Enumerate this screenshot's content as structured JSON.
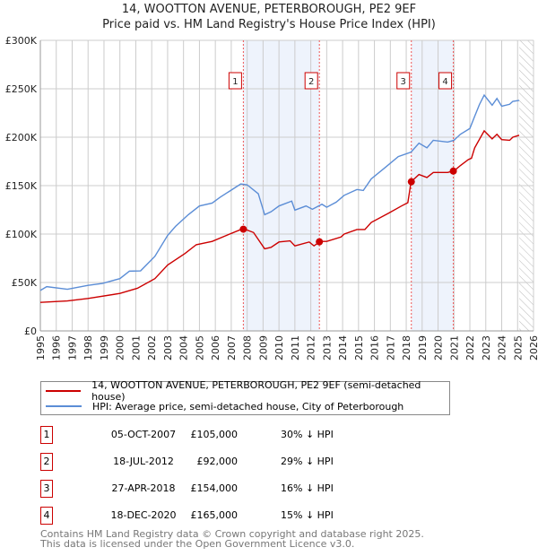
{
  "chart_data": {
    "type": "line",
    "title": "14, WOOTTON AVENUE, PETERBOROUGH, PE2 9EF",
    "subtitle": "Price paid vs. HM Land Registry's House Price Index (HPI)",
    "ylim": [
      0,
      300000
    ],
    "xlim": [
      1995,
      2026
    ],
    "yticks": [
      {
        "v": 0,
        "label": "£0"
      },
      {
        "v": 50000,
        "label": "£50K"
      },
      {
        "v": 100000,
        "label": "£100K"
      },
      {
        "v": 150000,
        "label": "£150K"
      },
      {
        "v": 200000,
        "label": "£200K"
      },
      {
        "v": 250000,
        "label": "£250K"
      },
      {
        "v": 300000,
        "label": "£300K"
      }
    ],
    "xticks": [
      "1995",
      "1996",
      "1997",
      "1998",
      "1999",
      "2000",
      "2001",
      "2002",
      "2003",
      "2004",
      "2005",
      "2006",
      "2007",
      "2008",
      "2009",
      "2010",
      "2011",
      "2012",
      "2013",
      "2014",
      "2015",
      "2016",
      "2017",
      "2018",
      "2019",
      "2020",
      "2021",
      "2022",
      "2023",
      "2024",
      "2025",
      "2026"
    ],
    "grid": true,
    "forecast_start": 2025.1,
    "series": [
      {
        "name": "14, WOOTTON AVENUE, PETERBOROUGH, PE2 9EF (semi-detached house)",
        "color": "#cc0000",
        "x": [
          1995.0,
          1996.7,
          1998.0,
          2000.0,
          2001.1,
          2002.2,
          2003.0,
          2004.1,
          2004.8,
          2005.8,
          2006.7,
          2007.6,
          2007.8,
          2008.4,
          2009.1,
          2009.5,
          2010.0,
          2010.7,
          2011.0,
          2011.9,
          2012.2,
          2012.6,
          2013.0,
          2013.9,
          2014.1,
          2014.9,
          2015.4,
          2015.8,
          2016.9,
          2017.7,
          2018.1,
          2018.2,
          2018.3,
          2018.8,
          2019.3,
          2019.7,
          2020.6,
          2021.0,
          2021.4,
          2021.9,
          2022.1,
          2022.3,
          2022.9,
          2023.4,
          2023.7,
          2024.0,
          2024.5,
          2024.7,
          2025.1
        ],
        "y": [
          29500,
          31000,
          33500,
          38700,
          44000,
          54000,
          68000,
          80000,
          89000,
          92400,
          98600,
          104700,
          105300,
          101600,
          84800,
          86300,
          91800,
          93000,
          87800,
          91800,
          87800,
          92400,
          92400,
          97000,
          100000,
          104700,
          104700,
          112000,
          121600,
          129000,
          132400,
          143000,
          153900,
          161500,
          158400,
          163600,
          163600,
          165200,
          170700,
          176900,
          178300,
          189000,
          206600,
          198300,
          203000,
          197500,
          196800,
          200000,
          202000
        ]
      },
      {
        "name": "HPI: Average price, semi-detached house, City of Peterborough",
        "color": "#5b8dd6",
        "x": [
          1995.0,
          1995.4,
          1996.7,
          1998.0,
          1998.9,
          2000.0,
          2000.6,
          2001.3,
          2002.2,
          2003.0,
          2003.5,
          2004.3,
          2005.0,
          2005.8,
          2006.3,
          2007.6,
          2008.0,
          2008.7,
          2009.1,
          2009.5,
          2010.0,
          2010.8,
          2011.0,
          2011.7,
          2012.1,
          2012.7,
          2013.0,
          2013.6,
          2014.1,
          2014.9,
          2015.3,
          2015.8,
          2016.7,
          2017.5,
          2018.3,
          2018.8,
          2019.3,
          2019.7,
          2020.6,
          2021.0,
          2021.4,
          2022.0,
          2022.3,
          2022.6,
          2022.9,
          2023.4,
          2023.7,
          2024.0,
          2024.5,
          2024.7,
          2025.1
        ],
        "y": [
          41800,
          45700,
          43000,
          47000,
          49000,
          54000,
          61700,
          62000,
          77000,
          98600,
          108000,
          120000,
          129000,
          132000,
          138000,
          151700,
          150800,
          141600,
          120000,
          123000,
          129000,
          134000,
          124700,
          129000,
          125600,
          130800,
          127700,
          133000,
          140000,
          146000,
          145000,
          157000,
          169000,
          180000,
          184600,
          193800,
          189000,
          196800,
          195000,
          196800,
          203000,
          209000,
          221500,
          233700,
          243500,
          233000,
          240000,
          232000,
          234000,
          237000,
          238000
        ]
      }
    ],
    "sales": [
      {
        "id": "1",
        "x": 2007.76,
        "value": 105000,
        "date": "05-OCT-2007",
        "price": "£105,000",
        "hpi": "30% ↓ HPI"
      },
      {
        "id": "2",
        "x": 2012.54,
        "value": 92000,
        "date": "18-JUL-2012",
        "price": "£92,000",
        "hpi": "29% ↓ HPI"
      },
      {
        "id": "3",
        "x": 2018.32,
        "value": 154000,
        "date": "27-APR-2018",
        "price": "£154,000",
        "hpi": "16% ↓ HPI"
      },
      {
        "id": "4",
        "x": 2020.96,
        "value": 165000,
        "date": "18-DEC-2020",
        "price": "£165,000",
        "hpi": "15% ↓ HPI"
      }
    ],
    "shaded": [
      [
        2007.76,
        2012.54
      ],
      [
        2018.32,
        2020.96
      ]
    ]
  },
  "footer": {
    "line1": "Contains HM Land Registry data © Crown copyright and database right 2025.",
    "line2": "This data is licensed under the Open Government Licence v3.0."
  }
}
